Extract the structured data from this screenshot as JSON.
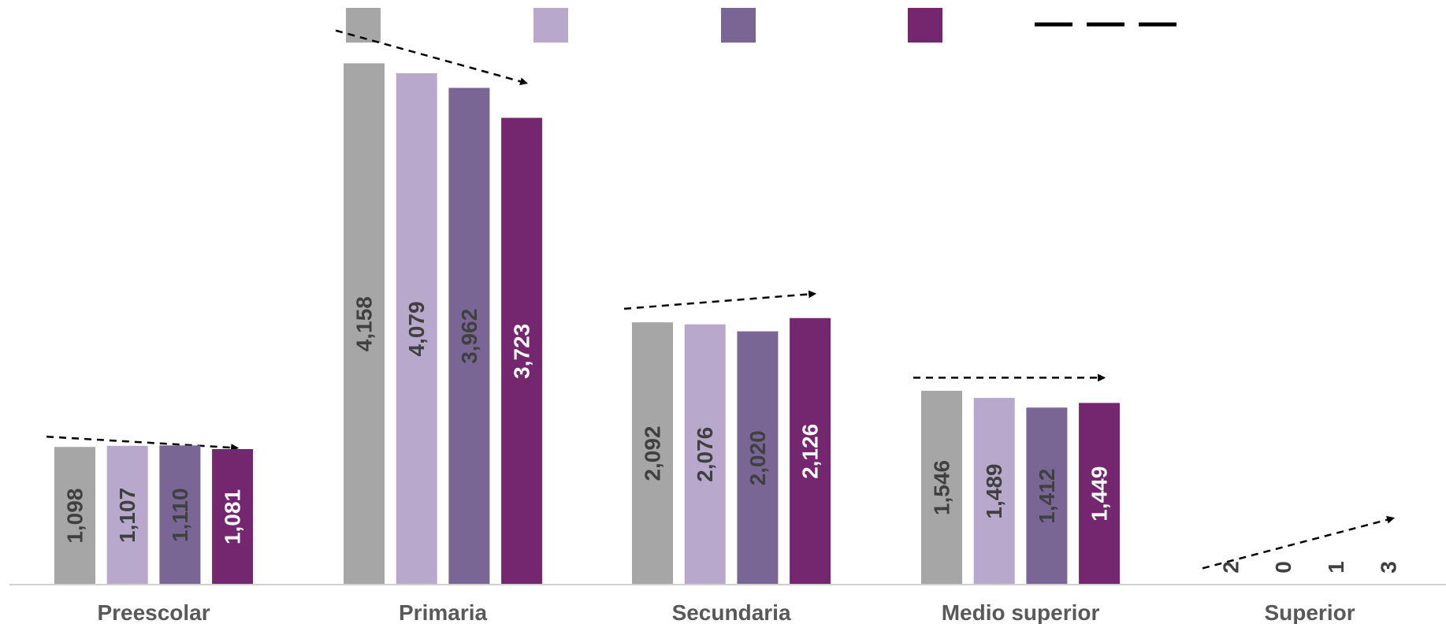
{
  "chart_data": {
    "type": "bar",
    "categories": [
      "Preescolar",
      "Primaria",
      "Secundaria",
      "Medio superior",
      "Superior"
    ],
    "series": [
      {
        "values": [
          1098,
          4158,
          2092,
          1546,
          2
        ],
        "color": "#a6a6a6",
        "label_color": "#404040"
      },
      {
        "values": [
          1107,
          4079,
          2076,
          1489,
          0
        ],
        "color": "#b8a8cc",
        "label_color": "#404040"
      },
      {
        "values": [
          1110,
          3962,
          2020,
          1412,
          1
        ],
        "color": "#7a6695",
        "label_color": "#404040"
      },
      {
        "values": [
          1081,
          3723,
          2126,
          1449,
          3
        ],
        "color": "#74276f",
        "label_color": "#ffffff"
      }
    ],
    "value_labels": [
      [
        "1,098",
        "4,158",
        "2,092",
        "1,546",
        "2"
      ],
      [
        "1,107",
        "4,079",
        "2,076",
        "1,489",
        "0"
      ],
      [
        "1,110",
        "3,962",
        "2,020",
        "1,412",
        "1"
      ],
      [
        "1,081",
        "3,723",
        "2,126",
        "1,449",
        "3"
      ]
    ],
    "trend_arrows": [
      {
        "from": 1180,
        "to": 1090
      },
      {
        "from": 4420,
        "to": 4000
      },
      {
        "from": 2200,
        "to": 2320
      },
      {
        "from": 1650,
        "to": 1650
      },
      {
        "from": 130,
        "to": 530
      }
    ],
    "legend": {
      "position": "top",
      "line_style": "dashed",
      "line_color": "#000000"
    },
    "xlabel": "",
    "ylabel": "",
    "ylim": [
      0,
      4600
    ],
    "grid": false
  }
}
